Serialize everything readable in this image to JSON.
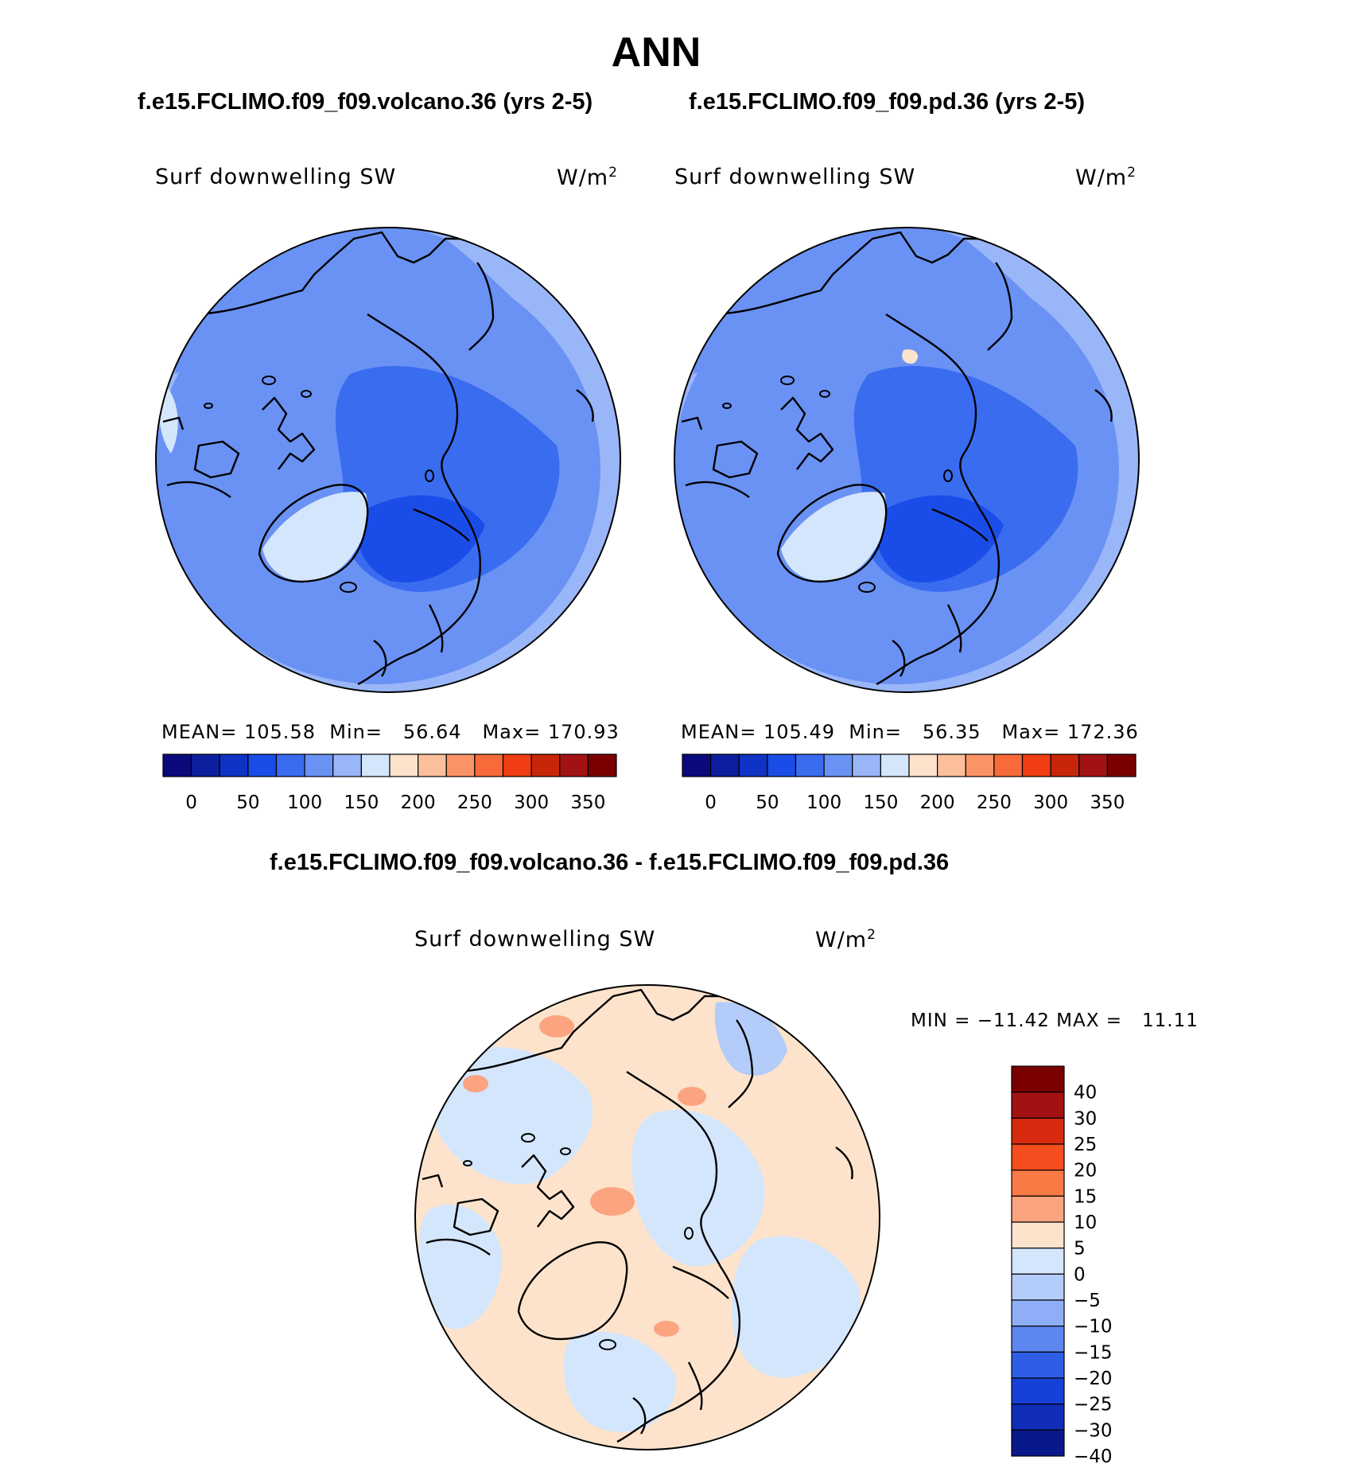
{
  "figure": {
    "title": "ANN",
    "diff_title": "f.e15.FCLIMO.f09_f09.volcano.36 - f.e15.FCLIMO.f09_f09.pd.36"
  },
  "panels": [
    {
      "case_title": "f.e15.FCLIMO.f09_f09.volcano.36 (yrs 2-5)",
      "variable": "Surf downwelling SW",
      "units": "W/m",
      "units_sup": "2",
      "stats": {
        "mean_label": "MEAN=",
        "mean": "105.58",
        "min_label": "Min=",
        "min": "56.64",
        "max_label": "Max=",
        "max": "170.93"
      }
    },
    {
      "case_title": "f.e15.FCLIMO.f09_f09.pd.36 (yrs 2-5)",
      "variable": "Surf downwelling SW",
      "units": "W/m",
      "units_sup": "2",
      "stats": {
        "mean_label": "MEAN=",
        "mean": "105.49",
        "min_label": "Min=",
        "min": "56.35",
        "max_label": "Max=",
        "max": "172.36"
      }
    }
  ],
  "diff_panel": {
    "variable": "Surf downwelling SW",
    "units": "W/m",
    "units_sup": "2",
    "minmax": "MIN = −11.42 MAX =   11.11"
  },
  "colorbar_abs": {
    "colors": [
      "#0a0a7d",
      "#0c1f9e",
      "#0f33c4",
      "#1a4de8",
      "#3a6cf0",
      "#6a92f4",
      "#99b6f8",
      "#d4e6fb",
      "#fde3cc",
      "#fcbf9b",
      "#fa9466",
      "#f86a3a",
      "#f03e12",
      "#c82608",
      "#a31212",
      "#7a0000"
    ],
    "labels": [
      "0",
      "50",
      "100",
      "150",
      "200",
      "250",
      "300",
      "350"
    ]
  },
  "colorbar_diff": {
    "colors": [
      "#7a0000",
      "#a31212",
      "#d82a0e",
      "#f54d1e",
      "#f87a45",
      "#fba47f",
      "#fde3cc",
      "#d4e6fb",
      "#b4ccf9",
      "#8eaef7",
      "#5d86f0",
      "#2e5ee6",
      "#1741d6",
      "#0f2db6",
      "#09198c"
    ],
    "labels": [
      "40",
      "30",
      "25",
      "20",
      "15",
      "10",
      "5",
      "0",
      "−5",
      "−10",
      "−15",
      "−20",
      "−25",
      "−30",
      "−40"
    ]
  }
}
